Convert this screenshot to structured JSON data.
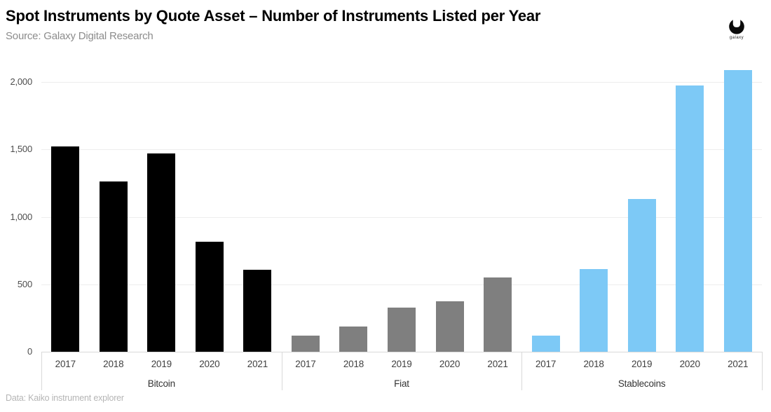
{
  "header": {
    "title": "Spot Instruments by Quote Asset – Number of Instruments Listed per Year",
    "source": "Source: Galaxy Digital Research",
    "logo_text": "galaxy"
  },
  "footer": {
    "note": "Data: Kaiko instrument explorer"
  },
  "chart_data": {
    "type": "bar",
    "title": "Spot Instruments by Quote Asset – Number of Instruments Listed per Year",
    "subtitle": "Source: Galaxy Digital Research",
    "categories": [
      "2017",
      "2018",
      "2019",
      "2020",
      "2021"
    ],
    "series": [
      {
        "name": "Bitcoin",
        "color": "#000000",
        "values": [
          1520,
          1260,
          1470,
          815,
          610
        ]
      },
      {
        "name": "Fiat",
        "color": "#7f7f7f",
        "values": [
          120,
          185,
          325,
          375,
          550
        ]
      },
      {
        "name": "Stablecoins",
        "color": "#7dc9f6",
        "values": [
          120,
          615,
          1130,
          1975,
          2090
        ]
      }
    ],
    "layout": "grouped-by-series",
    "xlabel": "",
    "ylabel": "",
    "ylim": [
      0,
      2100
    ],
    "yticks": [
      0,
      500,
      1000,
      1500,
      2000
    ],
    "ytick_labels": [
      "0",
      "500",
      "1,000",
      "1,500",
      "2,000"
    ],
    "grid": true,
    "legend": "none",
    "annotation": "Data: Kaiko instrument explorer"
  },
  "colors": {
    "background": "#ffffff",
    "gridline": "#ededed",
    "axis_line": "#d9d9d9",
    "tick_text": "#4d4d4d",
    "bitcoin_bar": "#000000",
    "fiat_bar": "#7f7f7f",
    "stablecoin_bar": "#7dc9f6"
  }
}
